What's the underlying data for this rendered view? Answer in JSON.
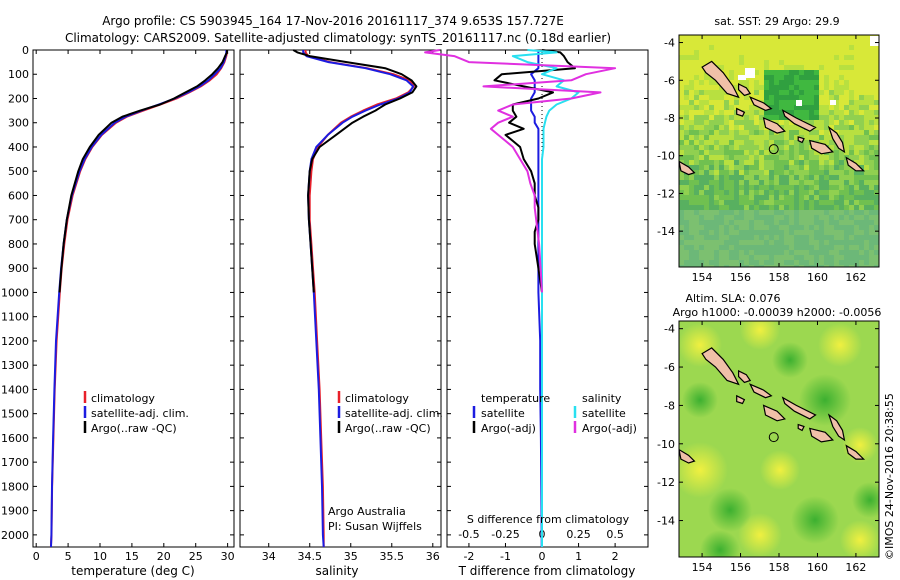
{
  "header": {
    "line1": "Argo profile: CS 5903945_164 17-Nov-2016 20161117_374 9.653S 157.727E",
    "line2": "Climatology: CARS2009. Satellite-adjusted climatology: synTS_20161117.nc (0.18d earlier)"
  },
  "depth_axis": {
    "ticks": [
      0,
      100,
      200,
      300,
      400,
      500,
      600,
      700,
      800,
      900,
      1000,
      1100,
      1200,
      1300,
      1400,
      1500,
      1600,
      1700,
      1800,
      1900,
      2000
    ],
    "range": [
      0,
      2050
    ]
  },
  "colors": {
    "climatology": "#e8202a",
    "satellite": "#1c1ce0",
    "argo": "#000000",
    "salinity_sat": "#28e0f0",
    "salinity_argo": "#e030e0",
    "land": "#f0c0a8"
  },
  "chart_data": [
    {
      "type": "line",
      "name": "temperature",
      "xlabel": "temperature (deg C)",
      "xlim": [
        -0.5,
        31
      ],
      "xticks": [
        0,
        5,
        10,
        15,
        20,
        25,
        30
      ],
      "depth": [
        0,
        10,
        25,
        50,
        75,
        100,
        125,
        150,
        175,
        200,
        225,
        250,
        275,
        300,
        350,
        400,
        450,
        500,
        600,
        700,
        800,
        900,
        1000,
        1200,
        1400,
        1600,
        1800,
        2000,
        2050
      ],
      "series": [
        {
          "name": "climatology",
          "values": [
            29.9,
            29.9,
            29.8,
            29.5,
            29.0,
            28.3,
            27.2,
            25.8,
            24.0,
            22.0,
            19.5,
            16.8,
            14.2,
            12.5,
            10.3,
            8.8,
            7.7,
            6.9,
            5.7,
            4.9,
            4.4,
            4.0,
            3.7,
            3.2,
            2.9,
            2.7,
            2.5,
            2.4,
            2.3
          ]
        },
        {
          "name": "satellite-adj. clim.",
          "values": [
            29.8,
            29.8,
            29.7,
            29.4,
            28.9,
            28.0,
            27.0,
            25.6,
            23.8,
            21.7,
            19.2,
            16.5,
            14.0,
            12.3,
            10.2,
            8.7,
            7.6,
            6.8,
            5.6,
            4.8,
            4.3,
            3.9,
            3.6,
            3.1,
            2.85,
            2.65,
            2.48,
            2.38,
            2.32
          ]
        },
        {
          "name": "Argo(..raw -QC)",
          "values": [
            29.9,
            29.9,
            29.6,
            29.2,
            28.5,
            27.6,
            26.5,
            25.2,
            23.4,
            21.6,
            19.4,
            16.3,
            13.5,
            11.8,
            9.8,
            8.4,
            7.3,
            6.6,
            5.5,
            4.8,
            4.3,
            3.95,
            3.65
          ]
        }
      ]
    },
    {
      "type": "line",
      "name": "salinity",
      "xlabel": "salinity",
      "xlim": [
        33.65,
        36.1
      ],
      "xticks": [
        34,
        34.5,
        35,
        35.5,
        36
      ],
      "tick_labels": [
        "34",
        "34.5",
        "35",
        "35.5",
        "36"
      ],
      "depth": [
        0,
        10,
        25,
        50,
        75,
        100,
        125,
        150,
        175,
        200,
        225,
        250,
        275,
        300,
        350,
        400,
        450,
        500,
        600,
        700,
        800,
        900,
        1000,
        1200,
        1400,
        1600,
        1800,
        2000,
        2050
      ],
      "series": [
        {
          "name": "climatology",
          "values": [
            34.45,
            34.45,
            34.48,
            34.75,
            35.2,
            35.52,
            35.72,
            35.77,
            35.7,
            35.55,
            35.32,
            35.15,
            35.0,
            34.88,
            34.72,
            34.6,
            34.54,
            34.52,
            34.5,
            34.5,
            34.52,
            34.54,
            34.56,
            34.59,
            34.62,
            34.64,
            34.66,
            34.67,
            34.67
          ]
        },
        {
          "name": "satellite-adj. clim.",
          "values": [
            34.42,
            34.42,
            34.46,
            34.73,
            35.18,
            35.48,
            35.68,
            35.76,
            35.72,
            35.58,
            35.36,
            35.18,
            35.02,
            34.9,
            34.72,
            34.58,
            34.52,
            34.5,
            34.48,
            34.49,
            34.51,
            34.53,
            34.55,
            34.58,
            34.61,
            34.63,
            34.65,
            34.66,
            34.67
          ]
        },
        {
          "name": "Argo(..raw -QC)",
          "values": [
            34.3,
            34.35,
            34.5,
            34.95,
            35.42,
            35.62,
            35.74,
            35.8,
            35.75,
            35.6,
            35.42,
            35.3,
            35.15,
            35.02,
            34.82,
            34.62,
            34.53,
            34.5,
            34.48,
            34.49,
            34.51,
            34.53,
            34.55
          ]
        }
      ]
    },
    {
      "type": "line",
      "name": "difference",
      "xlabel_bottom": "T difference from climatology",
      "xlabel_top": "S difference from climatology",
      "xlim": [
        -2.6,
        2.9
      ],
      "xticks_bottom": [
        -2,
        -1,
        0,
        1,
        2
      ],
      "xticks_top": [
        -0.5,
        -0.25,
        0,
        0.25,
        0.5
      ],
      "top_tick_labels": [
        "-0.5",
        "-0.25",
        "0",
        "0.25",
        "0.5"
      ],
      "depth": [
        0,
        10,
        25,
        50,
        75,
        100,
        125,
        150,
        175,
        200,
        225,
        250,
        275,
        300,
        325,
        350,
        375,
        400,
        450,
        500,
        550,
        600,
        650,
        700,
        750,
        800,
        900,
        1000,
        1200,
        1400,
        1600,
        1800,
        2000,
        2050
      ],
      "series": [
        {
          "name": "T satellite",
          "values": [
            -0.1,
            -0.1,
            -0.1,
            -0.1,
            -0.1,
            -0.3,
            -0.2,
            -0.2,
            -0.2,
            -0.3,
            -0.3,
            -0.3,
            -0.2,
            -0.2,
            -0.1,
            -0.1,
            -0.1,
            -0.1,
            -0.1,
            -0.1,
            -0.1,
            -0.1,
            -0.1,
            -0.1,
            -0.1,
            -0.1,
            -0.1,
            -0.1,
            -0.05,
            -0.05,
            -0.03,
            -0.02,
            -0.01,
            -0.01
          ]
        },
        {
          "name": "T Argo(-adj)",
          "values": [
            0,
            0.5,
            0.6,
            0.7,
            0.9,
            -1.1,
            -1.3,
            -0.5,
            0.3,
            -0.1,
            -0.8,
            -0.8,
            -0.7,
            -0.9,
            -0.5,
            -1.0,
            -0.8,
            -0.6,
            -0.5,
            -0.3,
            -0.2,
            -0.2,
            -0.1,
            -0.1,
            -0.2,
            -0.2,
            -0.1,
            0
          ]
        },
        {
          "name": "S satellite",
          "values": [
            -0.1,
            0.1,
            -0.2,
            -0.1,
            0.1,
            0,
            0.15,
            0.1,
            0.25,
            0.2,
            0.1,
            0.05,
            0.03,
            0.02,
            0.01,
            0.01,
            0.01,
            0.01,
            0,
            0,
            0,
            0,
            0,
            0,
            0,
            0,
            0,
            0,
            0,
            0,
            0,
            0,
            0,
            0
          ]
        },
        {
          "name": "S Argo(-adj)",
          "values": [
            -0.7,
            -0.8,
            -0.6,
            -0.5,
            0.5,
            0.3,
            0.2,
            -0.4,
            0.4,
            0.2,
            -0.2,
            -0.3,
            -0.2,
            -0.3,
            -0.35,
            -0.3,
            -0.25,
            -0.2,
            -0.15,
            -0.1,
            -0.08,
            -0.05,
            -0.05,
            -0.04,
            -0.03,
            -0.02,
            -0.01,
            0
          ]
        }
      ]
    }
  ],
  "legends": {
    "temperature_panel": [
      "climatology",
      "satellite-adj. clim.",
      "Argo(..raw -QC)"
    ],
    "salinity_panel": [
      "climatology",
      "satellite-adj. clim.",
      "Argo(..raw -QC)"
    ],
    "diff_temp_title": "temperature",
    "diff_sal_title": "salinity",
    "diff_temp_items": [
      "satellite",
      "Argo(-adj)"
    ],
    "diff_sal_items": [
      "satellite",
      "Argo(-adj)"
    ]
  },
  "credits": {
    "line1": "Argo Australia",
    "line2": "PI: Susan Wijffels"
  },
  "maps": {
    "top_title": "sat. SST: 29 Argo: 29.9",
    "bottom_title1": "Altim. SLA: 0.076",
    "bottom_title2": "Argo h1000: -0.00039 h2000: -0.0056",
    "lon_ticks": [
      154,
      156,
      158,
      160,
      162
    ],
    "lat_ticks": [
      -4,
      -6,
      -8,
      -10,
      -12,
      -14
    ],
    "lon_range": [
      152.8,
      163.2
    ],
    "lat_range": [
      -3.6,
      -15.9
    ],
    "float_lon": 157.727,
    "float_lat": -9.653
  },
  "watermark": "©IMOS 24-Nov-2016 20:38:55"
}
